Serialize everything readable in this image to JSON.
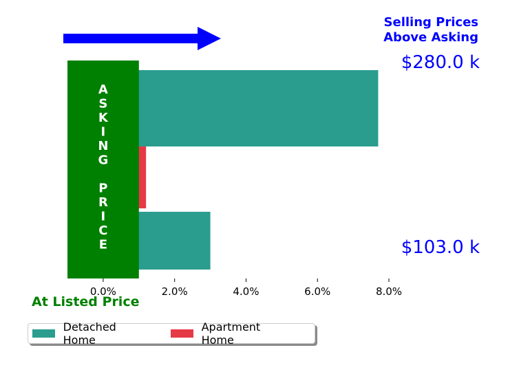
{
  "chart_data": {
    "type": "bar",
    "orientation": "horizontal",
    "categories": [
      "$280.0 k",
      "$103.0 k"
    ],
    "series": [
      {
        "name": "Detached Home",
        "color": "#2a9d8f",
        "values": [
          7.7,
          3.0
        ]
      },
      {
        "name": "Apartment Home",
        "color": "#e63946",
        "values": [
          1.2,
          1.2
        ]
      }
    ],
    "xticks": [
      "0.0%",
      "2.0%",
      "4.0%",
      "6.0%",
      "8.0%"
    ],
    "xtick_values": [
      0,
      2,
      4,
      6,
      8
    ],
    "xlim": [
      -1.0,
      8.0
    ],
    "price_labels": [
      "$280.0 k",
      "$103.0 k"
    ],
    "annotations": {
      "above_asking": [
        "Selling Prices",
        "Above Asking"
      ],
      "at_listed_price": "At Listed Price",
      "asking_price_letters": [
        "A",
        "S",
        "K",
        "I",
        "N",
        "G",
        "",
        "P",
        "R",
        "I",
        "C",
        "E"
      ]
    },
    "asking_band": {
      "from": -1.0,
      "to": 1.0,
      "color": "#008000"
    },
    "arrow_color": "#0000ff",
    "grid": false,
    "legend_position": "bottom-left"
  }
}
